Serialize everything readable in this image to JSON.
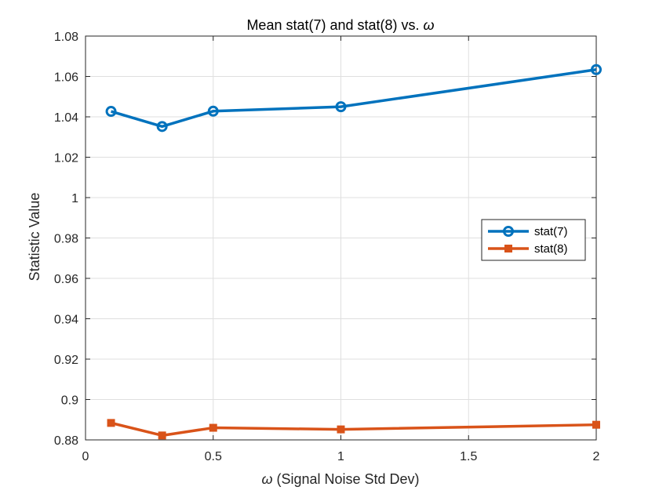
{
  "chart_data": {
    "type": "line",
    "title_main": "Mean stat(7) and stat(8) vs. ",
    "title_symbol": "ω",
    "xlabel_symbol": "ω",
    "xlabel_main": " (Signal Noise Std Dev)",
    "ylabel": "Statistic Value",
    "xlim": [
      0,
      2
    ],
    "ylim": [
      0.88,
      1.08
    ],
    "xticks": [
      0,
      0.5,
      1,
      1.5,
      2
    ],
    "xtick_labels": [
      "0",
      "0.5",
      "1",
      "1.5",
      "2"
    ],
    "yticks": [
      0.88,
      0.9,
      0.92,
      0.94,
      0.96,
      0.98,
      1.0,
      1.02,
      1.04,
      1.06,
      1.08
    ],
    "ytick_labels": [
      "0.88",
      "0.9",
      "0.92",
      "0.94",
      "0.96",
      "0.98",
      "1",
      "1.02",
      "1.04",
      "1.06",
      "1.08"
    ],
    "grid": true,
    "legend_position": "east",
    "x": [
      0.1,
      0.3,
      0.5,
      1.0,
      2.0
    ],
    "series": [
      {
        "name": "stat(7)",
        "color": "#0072BD",
        "marker": "circle",
        "values": [
          1.0427,
          1.0352,
          1.0428,
          1.045,
          1.0634
        ]
      },
      {
        "name": "stat(8)",
        "color": "#D95319",
        "marker": "square",
        "values": [
          0.8884,
          0.8822,
          0.886,
          0.8852,
          0.8875
        ]
      }
    ]
  }
}
